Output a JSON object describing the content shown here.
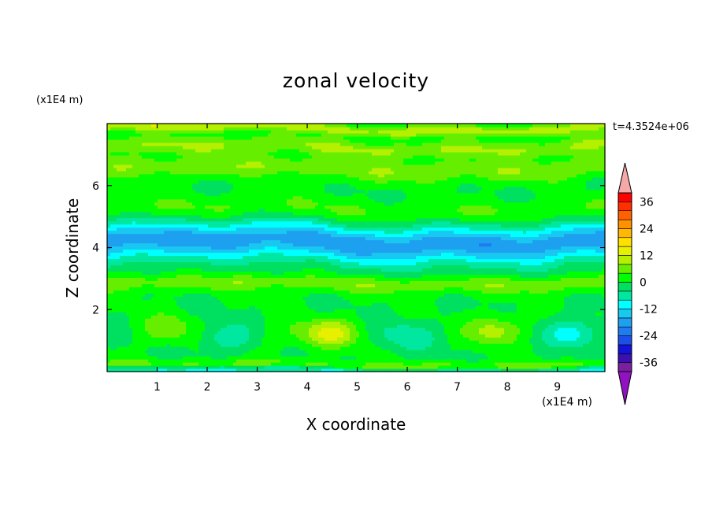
{
  "chart_data": {
    "type": "heatmap",
    "title": "zonal velocity",
    "xlabel": "X coordinate",
    "ylabel": "Z coordinate",
    "x_scale_label": "(x1E4 m)",
    "y_scale_label": "(x1E4 m)",
    "time_label": "t=4.3524e+06",
    "xlim": [
      0,
      9.95
    ],
    "ylim": [
      0,
      8
    ],
    "x_ticks": [
      1,
      2,
      3,
      4,
      5,
      6,
      7,
      8,
      9
    ],
    "y_ticks": [
      2,
      4,
      6
    ],
    "colorbar": {
      "levels": [
        -40,
        -36,
        -32,
        -28,
        -24,
        -20,
        -16,
        -12,
        -8,
        -4,
        0,
        4,
        8,
        12,
        16,
        20,
        24,
        28,
        32,
        36,
        40
      ],
      "colors": [
        "#7a1fa2",
        "#3b0fb0",
        "#1212d8",
        "#1d4fe8",
        "#1e7cf0",
        "#1ea0f0",
        "#18c8f0",
        "#00ffff",
        "#00e8a0",
        "#00e060",
        "#00ff00",
        "#66ee00",
        "#b4f000",
        "#e6f000",
        "#ffe000",
        "#ffb800",
        "#ff9000",
        "#ff6000",
        "#ff3000",
        "#ff0000"
      ],
      "under_color": "#9012c0",
      "over_color": "#f4a8a8",
      "labeled_levels": [
        -36,
        -24,
        -12,
        0,
        12,
        24,
        36
      ],
      "tick_labels": [
        "-36",
        "-24",
        "-12",
        "0",
        "12",
        "24",
        "36"
      ]
    },
    "field_description": "banded zonal velocity; negative core near z=4.2, weak positive bands near z=2.9 and z=7.4, alternating cells near bottom",
    "bands": [
      {
        "z": 0.05,
        "u": -14,
        "w": 0.14
      },
      {
        "z": 0.15,
        "u": 9,
        "w": 0.18
      },
      {
        "z": 2.85,
        "u": 7,
        "w": 0.28
      },
      {
        "z": 4.2,
        "u": -17,
        "w": 0.55
      },
      {
        "z": 3.7,
        "u": -2,
        "w": 0.7
      },
      {
        "z": 5.25,
        "u": 4,
        "w": 0.35
      },
      {
        "z": 6.55,
        "u": 7,
        "w": 0.35
      },
      {
        "z": 7.25,
        "u": 8,
        "w": 0.28
      },
      {
        "z": 7.85,
        "u": 10,
        "w": 0.18
      }
    ],
    "cells": [
      {
        "x": 1.2,
        "z": 1.4,
        "u": 7
      },
      {
        "x": 2.4,
        "z": 1.1,
        "u": -7
      },
      {
        "x": 3.5,
        "z": 1.2,
        "u": 3
      },
      {
        "x": 4.45,
        "z": 1.25,
        "u": 13
      },
      {
        "x": 6.0,
        "z": 1.15,
        "u": -7
      },
      {
        "x": 7.75,
        "z": 1.35,
        "u": 10
      },
      {
        "x": 9.3,
        "z": 1.25,
        "u": -10
      }
    ]
  }
}
